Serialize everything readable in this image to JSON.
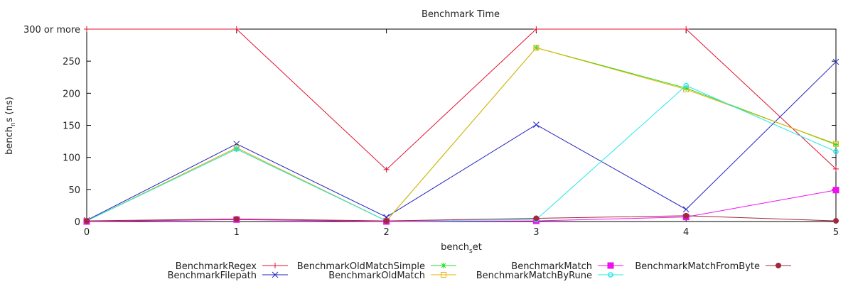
{
  "chart_data": {
    "type": "line",
    "title": "Benchmark Time",
    "xlabel": "bench_set",
    "xlabel_parts": {
      "base": "bench",
      "sub": "s",
      "rest": "et"
    },
    "ylabel": "bench_ns (ns)",
    "ylabel_parts": {
      "base": "bench",
      "sub": "n",
      "rest": "s (ns)"
    },
    "x": [
      0,
      1,
      2,
      3,
      4,
      5
    ],
    "xlim": [
      0,
      5
    ],
    "ylim": [
      0,
      300
    ],
    "yticks": [
      {
        "value": 0,
        "label": "0"
      },
      {
        "value": 50,
        "label": "50"
      },
      {
        "value": 100,
        "label": "100"
      },
      {
        "value": 150,
        "label": "150"
      },
      {
        "value": 200,
        "label": "200"
      },
      {
        "value": 250,
        "label": "250"
      },
      {
        "value": 300,
        "label": "300 or more"
      }
    ],
    "xticks": [
      "0",
      "1",
      "2",
      "3",
      "4",
      "5"
    ],
    "grid": false,
    "legend_position": "bottom",
    "series": [
      {
        "name": "BenchmarkRegex",
        "color": "#e0102f",
        "marker": "plus",
        "values": [
          300,
          300,
          81,
          300,
          300,
          82
        ]
      },
      {
        "name": "BenchmarkFilepath",
        "color": "#2020c0",
        "marker": "cross",
        "values": [
          2,
          121,
          7,
          151,
          19,
          249
        ]
      },
      {
        "name": "BenchmarkOldMatchSimple",
        "color": "#22dd22",
        "marker": "star",
        "values": [
          1,
          113,
          1,
          271,
          208,
          120
        ]
      },
      {
        "name": "BenchmarkOldMatch",
        "color": "#e8b000",
        "marker": "square-open",
        "values": [
          1,
          115,
          1,
          271,
          206,
          121
        ]
      },
      {
        "name": "BenchmarkMatch",
        "color": "#ee10ee",
        "marker": "square-filled",
        "values": [
          0,
          3,
          0,
          1,
          7,
          49
        ]
      },
      {
        "name": "BenchmarkMatchByRune",
        "color": "#22e8e8",
        "marker": "circle-open",
        "values": [
          1,
          113,
          1,
          3,
          212,
          109
        ]
      },
      {
        "name": "BenchmarkMatchFromByte",
        "color": "#a0283c",
        "marker": "circle-filled",
        "values": [
          1,
          4,
          1,
          5,
          9,
          1
        ]
      }
    ]
  }
}
